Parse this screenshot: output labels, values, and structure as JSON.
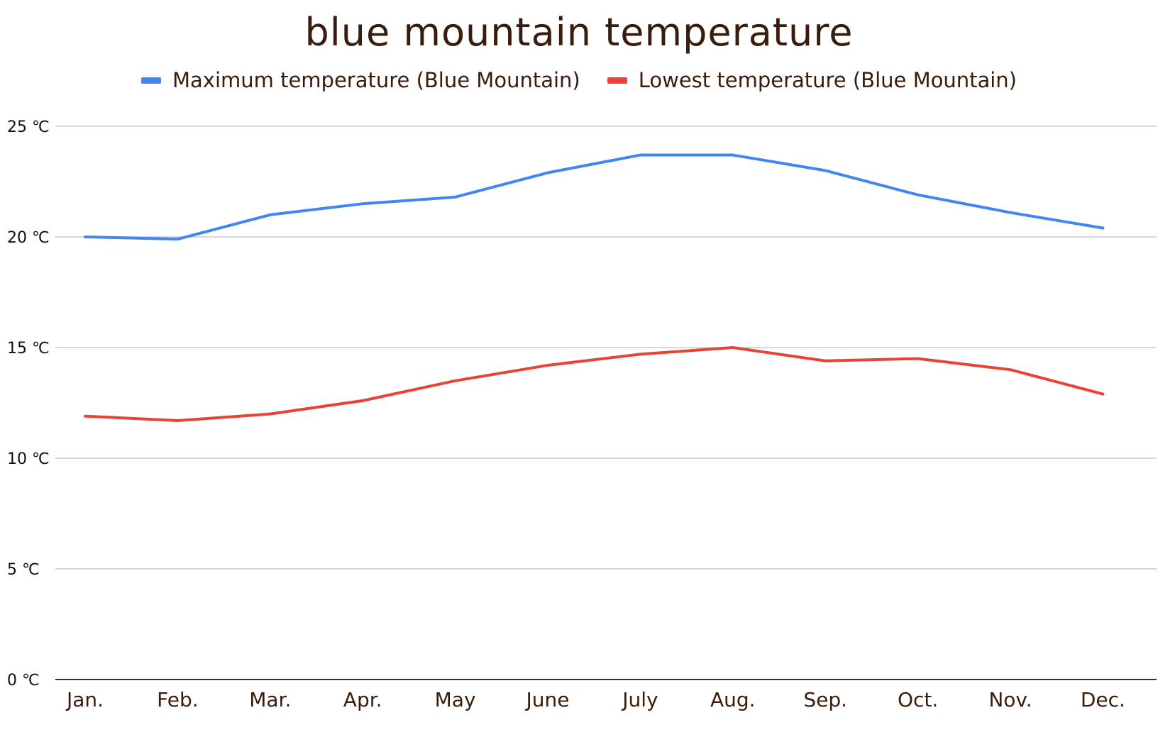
{
  "chart_data": {
    "type": "line",
    "title": "blue mountain temperature",
    "categories": [
      "Jan.",
      "Feb.",
      "Mar.",
      "Apr.",
      "May",
      "June",
      "July",
      "Aug.",
      "Sep.",
      "Oct.",
      "Nov.",
      "Dec."
    ],
    "series": [
      {
        "name": "Maximum temperature (Blue Mountain)",
        "color": "#4285f4",
        "values": [
          20.0,
          19.9,
          21.0,
          21.5,
          21.8,
          22.9,
          23.7,
          23.7,
          23.0,
          21.9,
          21.1,
          20.4
        ]
      },
      {
        "name": "Lowest temperature (Blue Mountain)",
        "color": "#ea4335",
        "values": [
          11.9,
          11.7,
          12.0,
          12.6,
          13.5,
          14.2,
          14.7,
          15.0,
          14.4,
          14.5,
          14.0,
          12.9
        ]
      }
    ],
    "ylim": [
      0,
      25
    ],
    "yticks": [
      "0 ℃",
      "5 ℃",
      "10 ℃",
      "15 ℃",
      "20 ℃",
      "25 ℃"
    ],
    "ytick_values": [
      0,
      5,
      10,
      15,
      20,
      25
    ],
    "grid": true,
    "legend_position": "top"
  }
}
